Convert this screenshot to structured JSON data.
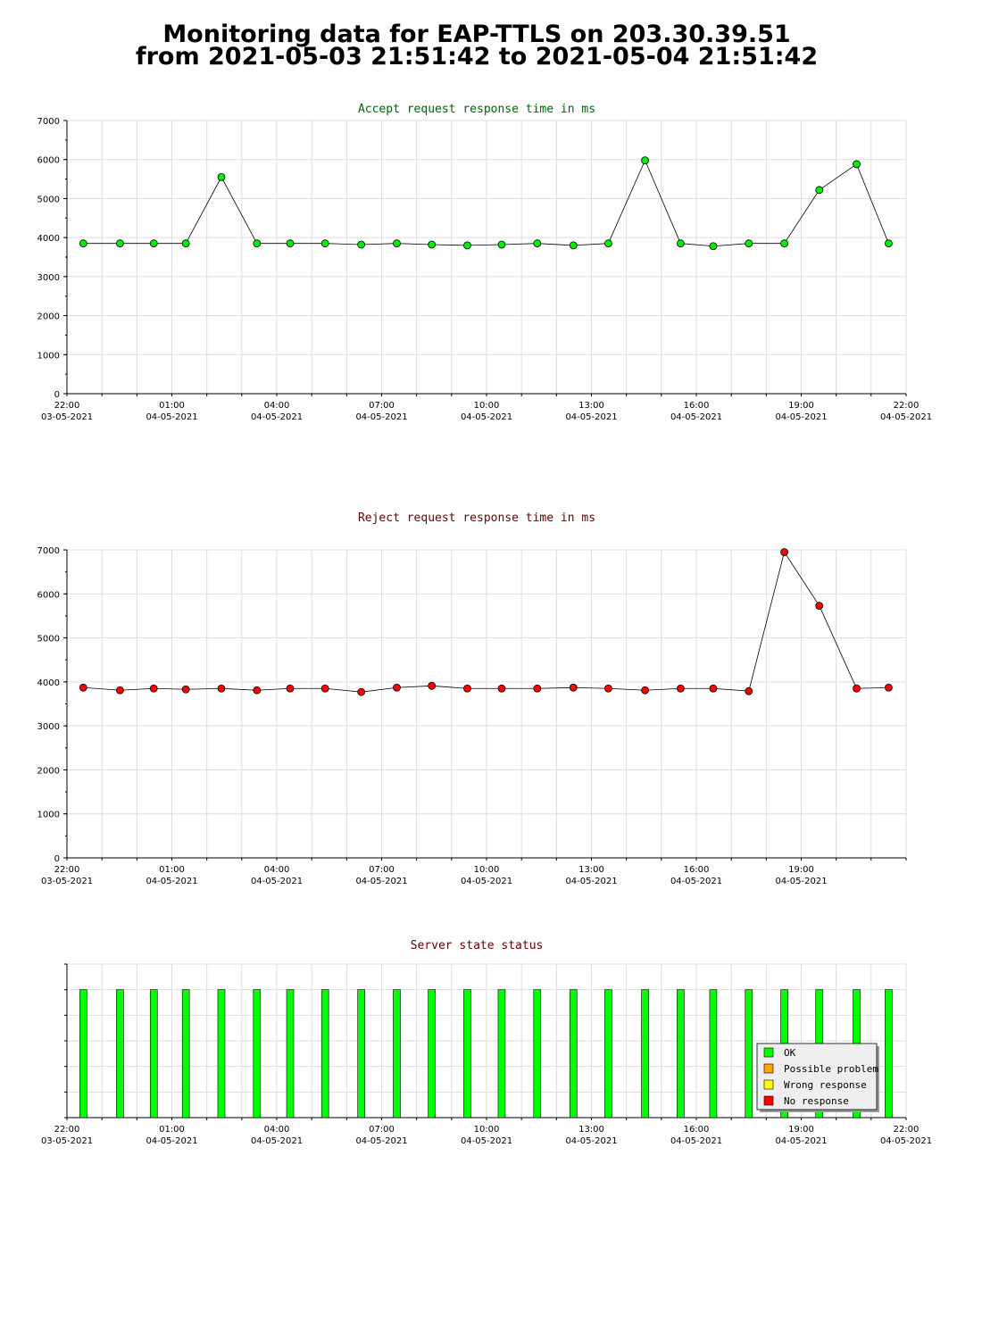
{
  "header": {
    "title_line1": "Monitoring data for EAP-TTLS on 203.30.39.51",
    "title_line2": "from 2021-05-03 21:51:42 to 2021-05-04 21:51:42"
  },
  "colors": {
    "accept_title": "#006600",
    "reject_title": "#660000",
    "status_title": "#660000",
    "accept_marker": "#00ee00",
    "reject_marker": "#ff0000",
    "line": "#000000",
    "grid": "#dddddd"
  },
  "chart_data": [
    {
      "type": "line",
      "title": "Accept request response time in ms",
      "xlim": [
        "2021-05-03 22:00",
        "2021-05-04 22:00"
      ],
      "ylim": [
        0,
        7000
      ],
      "yticks": [
        0,
        1000,
        2000,
        3000,
        4000,
        5000,
        6000,
        7000
      ],
      "grid": true,
      "x_tick_labels": [
        {
          "time": "22:00",
          "date": "03-05-2021"
        },
        {
          "time": "01:00",
          "date": "04-05-2021"
        },
        {
          "time": "04:00",
          "date": "04-05-2021"
        },
        {
          "time": "07:00",
          "date": "04-05-2021"
        },
        {
          "time": "10:00",
          "date": "04-05-2021"
        },
        {
          "time": "13:00",
          "date": "04-05-2021"
        },
        {
          "time": "16:00",
          "date": "04-05-2021"
        },
        {
          "time": "19:00",
          "date": "04-05-2021"
        },
        {
          "time": "22:00",
          "date": "04-05-2021"
        }
      ],
      "x": [
        "2021-05-03 22:28",
        "2021-05-03 23:31",
        "2021-05-04 00:29",
        "2021-05-04 01:24",
        "2021-05-04 02:25",
        "2021-05-04 03:26",
        "2021-05-04 04:23",
        "2021-05-04 05:23",
        "2021-05-04 06:25",
        "2021-05-04 07:26",
        "2021-05-04 08:26",
        "2021-05-04 09:27",
        "2021-05-04 10:26",
        "2021-05-04 11:27",
        "2021-05-04 12:29",
        "2021-05-04 13:29",
        "2021-05-04 14:32",
        "2021-05-04 15:33",
        "2021-05-04 16:29",
        "2021-05-04 17:30",
        "2021-05-04 18:31",
        "2021-05-04 19:31",
        "2021-05-04 20:35",
        "2021-05-04 21:30"
      ],
      "values": [
        3850,
        3850,
        3850,
        3850,
        5550,
        3850,
        3850,
        3850,
        3820,
        3850,
        3820,
        3800,
        3820,
        3850,
        3800,
        3850,
        5980,
        3850,
        3780,
        3850,
        3850,
        5220,
        5880,
        3850
      ]
    },
    {
      "type": "line",
      "title": "Reject request response time in ms",
      "xlim": [
        "2021-05-03 22:00",
        "2021-05-04 22:00"
      ],
      "ylim": [
        0,
        7000
      ],
      "yticks": [
        0,
        1000,
        2000,
        3000,
        4000,
        5000,
        6000,
        7000
      ],
      "grid": true,
      "x_tick_labels": [
        {
          "time": "22:00",
          "date": "03-05-2021"
        },
        {
          "time": "01:00",
          "date": "04-05-2021"
        },
        {
          "time": "04:00",
          "date": "04-05-2021"
        },
        {
          "time": "07:00",
          "date": "04-05-2021"
        },
        {
          "time": "10:00",
          "date": "04-05-2021"
        },
        {
          "time": "13:00",
          "date": "04-05-2021"
        },
        {
          "time": "16:00",
          "date": "04-05-2021"
        },
        {
          "time": "19:00",
          "date": "04-05-2021"
        }
      ],
      "x": [
        "2021-05-03 22:28",
        "2021-05-03 23:31",
        "2021-05-04 00:29",
        "2021-05-04 01:24",
        "2021-05-04 02:25",
        "2021-05-04 03:26",
        "2021-05-04 04:23",
        "2021-05-04 05:23",
        "2021-05-04 06:25",
        "2021-05-04 07:26",
        "2021-05-04 08:26",
        "2021-05-04 09:27",
        "2021-05-04 10:26",
        "2021-05-04 11:27",
        "2021-05-04 12:29",
        "2021-05-04 13:29",
        "2021-05-04 14:32",
        "2021-05-04 15:33",
        "2021-05-04 16:29",
        "2021-05-04 17:30",
        "2021-05-04 18:31",
        "2021-05-04 19:31",
        "2021-05-04 20:35",
        "2021-05-04 21:30"
      ],
      "values": [
        3870,
        3810,
        3850,
        3830,
        3850,
        3810,
        3850,
        3850,
        3770,
        3870,
        3910,
        3850,
        3850,
        3850,
        3870,
        3850,
        3810,
        3850,
        3850,
        3790,
        6950,
        5730,
        3850,
        3870
      ]
    },
    {
      "type": "bar",
      "title": "Server state status",
      "xlim": [
        "2021-05-03 22:00",
        "2021-05-04 22:00"
      ],
      "grid": true,
      "x_tick_labels": [
        {
          "time": "22:00",
          "date": "03-05-2021"
        },
        {
          "time": "01:00",
          "date": "04-05-2021"
        },
        {
          "time": "04:00",
          "date": "04-05-2021"
        },
        {
          "time": "07:00",
          "date": "04-05-2021"
        },
        {
          "time": "10:00",
          "date": "04-05-2021"
        },
        {
          "time": "13:00",
          "date": "04-05-2021"
        },
        {
          "time": "16:00",
          "date": "04-05-2021"
        },
        {
          "time": "19:00",
          "date": "04-05-2021"
        },
        {
          "time": "22:00",
          "date": "04-05-2021"
        }
      ],
      "x": [
        "2021-05-03 22:28",
        "2021-05-03 23:31",
        "2021-05-04 00:29",
        "2021-05-04 01:24",
        "2021-05-04 02:25",
        "2021-05-04 03:26",
        "2021-05-04 04:23",
        "2021-05-04 05:23",
        "2021-05-04 06:25",
        "2021-05-04 07:26",
        "2021-05-04 08:26",
        "2021-05-04 09:27",
        "2021-05-04 10:26",
        "2021-05-04 11:27",
        "2021-05-04 12:29",
        "2021-05-04 13:29",
        "2021-05-04 14:32",
        "2021-05-04 15:33",
        "2021-05-04 16:29",
        "2021-05-04 17:30",
        "2021-05-04 18:31",
        "2021-05-04 19:31",
        "2021-05-04 20:35",
        "2021-05-04 21:30"
      ],
      "status": [
        "OK",
        "OK",
        "OK",
        "OK",
        "OK",
        "OK",
        "OK",
        "OK",
        "OK",
        "OK",
        "OK",
        "OK",
        "OK",
        "OK",
        "OK",
        "OK",
        "OK",
        "OK",
        "OK",
        "OK",
        "OK",
        "OK",
        "OK",
        "OK"
      ],
      "legend_position": "bottom-right",
      "legend": [
        {
          "label": "OK",
          "color": "#00ff00"
        },
        {
          "label": "Possible problem",
          "color": "#ffa500"
        },
        {
          "label": "Wrong response",
          "color": "#ffff00"
        },
        {
          "label": "No response",
          "color": "#ff0000"
        }
      ]
    }
  ]
}
